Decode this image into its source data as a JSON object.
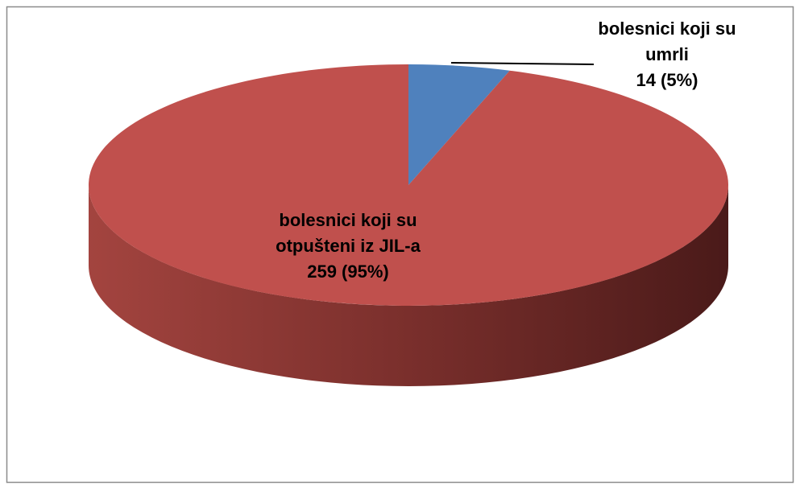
{
  "chart_data": {
    "type": "pie",
    "categories": [
      "bolesnici koji su umrli",
      "bolesnici koji su otpušteni iz JIL-a"
    ],
    "values": [
      14,
      259
    ],
    "value_labels": [
      "14 (5%)",
      "259 (95%)"
    ],
    "colors": [
      "#4f81bd",
      "#c0504d"
    ]
  }
}
